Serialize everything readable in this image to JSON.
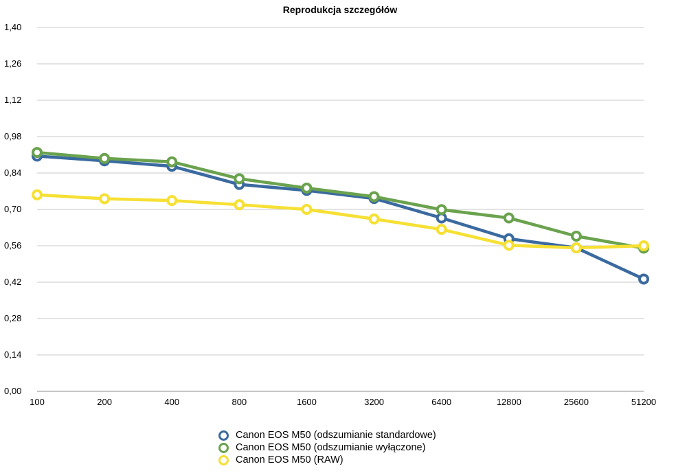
{
  "chart_data": {
    "type": "line",
    "title": "Reprodukcja szczegółów",
    "xlabel": "",
    "ylabel": "",
    "categories": [
      "100",
      "200",
      "400",
      "800",
      "1600",
      "3200",
      "6400",
      "12800",
      "25600",
      "51200"
    ],
    "yticks": [
      "0,00",
      "0,14",
      "0,28",
      "0,42",
      "0,56",
      "0,70",
      "0,84",
      "0,98",
      "1,12",
      "1,26",
      "1,40"
    ],
    "ylim": [
      0,
      1.4
    ],
    "grid": true,
    "legend_position": "bottom",
    "series": [
      {
        "name": "Canon EOS M50 (odszumianie standardowe)",
        "color": "#3a6aa0",
        "values": [
          0.905,
          0.887,
          0.866,
          0.796,
          0.773,
          0.742,
          0.667,
          0.587,
          0.552,
          0.432
        ]
      },
      {
        "name": "Canon EOS M50 (odszumianie wyłączone)",
        "color": "#6aa24e",
        "values": [
          0.919,
          0.896,
          0.883,
          0.818,
          0.782,
          0.749,
          0.699,
          0.667,
          0.597,
          0.551
        ]
      },
      {
        "name": "Canon EOS M50 (RAW)",
        "color": "#f6e034",
        "values": [
          0.756,
          0.741,
          0.734,
          0.718,
          0.7,
          0.663,
          0.623,
          0.562,
          0.552,
          0.56
        ]
      }
    ]
  }
}
